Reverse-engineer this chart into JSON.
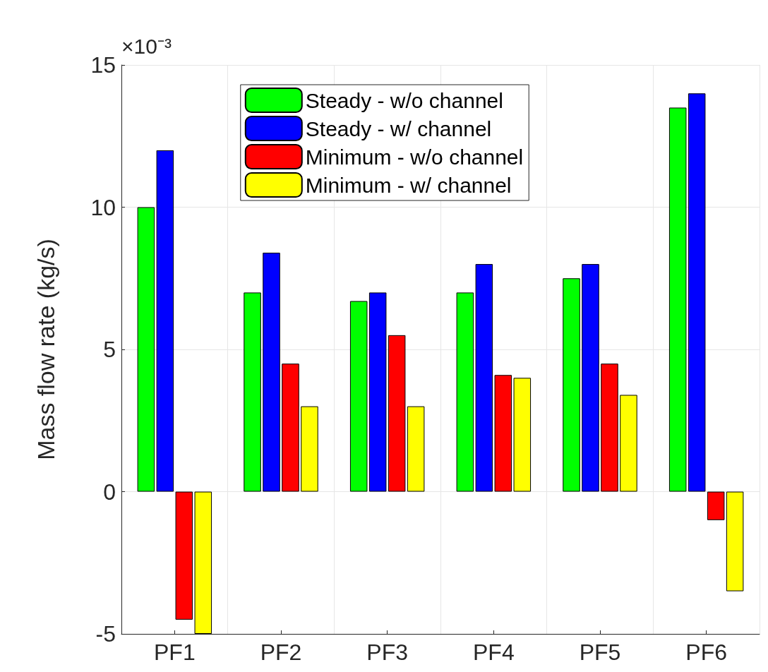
{
  "chart_data": {
    "type": "bar",
    "ylabel": "Mass flow rate (kg/s)",
    "annotations": [
      "×10⁻³"
    ],
    "categories": [
      "PF1",
      "PF2",
      "PF3",
      "PF4",
      "PF5",
      "PF6"
    ],
    "series": [
      {
        "name": "Steady - w/o channel",
        "color": "#00ff00",
        "values": [
          10,
          7,
          6.7,
          7,
          7.5,
          13.5
        ]
      },
      {
        "name": "Steady - w/ channel",
        "color": "#0000ff",
        "values": [
          12,
          8.4,
          7,
          8,
          8,
          14
        ]
      },
      {
        "name": "Minimum - w/o channel",
        "color": "#ff0000",
        "values": [
          -4.5,
          4.5,
          5.5,
          4.1,
          4.5,
          -1
        ]
      },
      {
        "name": "Minimum - w/ channel",
        "color": "#ffff00",
        "values": [
          -5,
          3,
          3,
          4,
          3.4,
          -3.5
        ]
      }
    ],
    "ylim": [
      -5,
      15
    ],
    "yticks": [
      -5,
      0,
      5,
      10,
      15
    ],
    "grid": true,
    "legend": "top"
  }
}
